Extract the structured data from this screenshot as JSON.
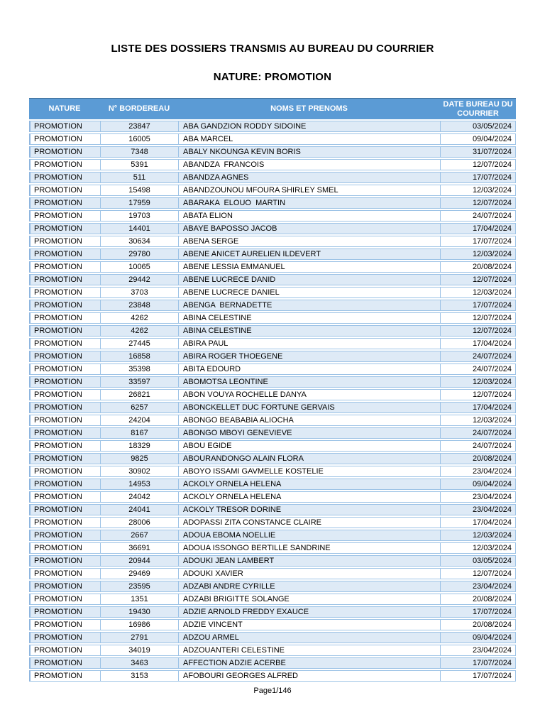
{
  "page": {
    "title": "LISTE DES DOSSIERS TRANSMIS AU BUREAU DU COURRIER",
    "subtitle": "NATURE: PROMOTION",
    "footer": "Page1/146"
  },
  "colors": {
    "header_bg": "#5B9BD5",
    "header_text": "#FFFFFF",
    "band_row_bg": "#DEEAF6",
    "cell_border": "#9DC3E6"
  },
  "table": {
    "columns": [
      "NATURE",
      "N° BORDEREAU",
      "NOMS ET PRENOMS",
      "DATE BUREAU DU COURRIER"
    ],
    "rows": [
      {
        "nature": "PROMOTION",
        "bordereau": "23847",
        "noms": "ABA GANDZION RODDY SIDOINE",
        "date": "03/05/2024"
      },
      {
        "nature": "PROMOTION",
        "bordereau": "16005",
        "noms": "ABA MARCEL",
        "date": "09/04/2024"
      },
      {
        "nature": "PROMOTION",
        "bordereau": "7348",
        "noms": "ABALY NKOUNGA KEVIN BORIS",
        "date": "31/07/2024"
      },
      {
        "nature": "PROMOTION",
        "bordereau": "5391",
        "noms": "ABANDZA  FRANCOIS",
        "date": "12/07/2024"
      },
      {
        "nature": "PROMOTION",
        "bordereau": "511",
        "noms": "ABANDZA AGNES",
        "date": "17/07/2024"
      },
      {
        "nature": "PROMOTION",
        "bordereau": "15498",
        "noms": "ABANDZOUNOU MFOURA SHIRLEY SMEL",
        "date": "12/03/2024"
      },
      {
        "nature": "PROMOTION",
        "bordereau": "17959",
        "noms": "ABARAKA  ELOUO  MARTIN",
        "date": "12/07/2024"
      },
      {
        "nature": "PROMOTION",
        "bordereau": "19703",
        "noms": "ABATA ELION",
        "date": "24/07/2024"
      },
      {
        "nature": "PROMOTION",
        "bordereau": "14401",
        "noms": "ABAYE BAPOSSO JACOB",
        "date": "17/04/2024"
      },
      {
        "nature": "PROMOTION",
        "bordereau": "30634",
        "noms": "ABENA SERGE",
        "date": "17/07/2024"
      },
      {
        "nature": "PROMOTION",
        "bordereau": "29780",
        "noms": "ABENE ANICET AURELIEN ILDEVERT",
        "date": "12/03/2024"
      },
      {
        "nature": "PROMOTION",
        "bordereau": "10065",
        "noms": "ABENE LESSIA EMMANUEL",
        "date": "20/08/2024"
      },
      {
        "nature": "PROMOTION",
        "bordereau": "29442",
        "noms": "ABENE LUCRECE DANID",
        "date": "12/07/2024"
      },
      {
        "nature": "PROMOTION",
        "bordereau": "3703",
        "noms": "ABENE LUCRECE DANIEL",
        "date": "12/03/2024"
      },
      {
        "nature": "PROMOTION",
        "bordereau": "23848",
        "noms": "ABENGA  BERNADETTE",
        "date": "17/07/2024"
      },
      {
        "nature": "PROMOTION",
        "bordereau": "4262",
        "noms": "ABINA CELESTINE",
        "date": "12/07/2024"
      },
      {
        "nature": "PROMOTION",
        "bordereau": "4262",
        "noms": "ABINA CELESTINE",
        "date": "12/07/2024"
      },
      {
        "nature": "PROMOTION",
        "bordereau": "27445",
        "noms": "ABIRA PAUL",
        "date": "17/04/2024"
      },
      {
        "nature": "PROMOTION",
        "bordereau": "16858",
        "noms": "ABIRA ROGER THOEGENE",
        "date": "24/07/2024"
      },
      {
        "nature": "PROMOTION",
        "bordereau": "35398",
        "noms": "ABITA EDOURD",
        "date": "24/07/2024"
      },
      {
        "nature": "PROMOTION",
        "bordereau": "33597",
        "noms": "ABOMOTSA LEONTINE",
        "date": "12/03/2024"
      },
      {
        "nature": "PROMOTION",
        "bordereau": "26821",
        "noms": "ABON VOUYA ROCHELLE DANYA",
        "date": "12/07/2024"
      },
      {
        "nature": "PROMOTION",
        "bordereau": "6257",
        "noms": "ABONCKELLET DUC FORTUNE GERVAIS",
        "date": "17/04/2024"
      },
      {
        "nature": "PROMOTION",
        "bordereau": "24204",
        "noms": "ABONGO BEABABIA ALIOCHA",
        "date": "12/03/2024"
      },
      {
        "nature": "PROMOTION",
        "bordereau": "8167",
        "noms": "ABONGO MBOYI GENEVIEVE",
        "date": "24/07/2024"
      },
      {
        "nature": "PROMOTION",
        "bordereau": "18329",
        "noms": "ABOU EGIDE",
        "date": "24/07/2024"
      },
      {
        "nature": "PROMOTION",
        "bordereau": "9825",
        "noms": "ABOURANDONGO ALAIN FLORA",
        "date": "20/08/2024"
      },
      {
        "nature": "PROMOTION",
        "bordereau": "30902",
        "noms": "ABOYO ISSAMI GAVMELLE KOSTELIE",
        "date": "23/04/2024"
      },
      {
        "nature": "PROMOTION",
        "bordereau": "14953",
        "noms": "ACKOLY ORNELA HELENA",
        "date": "09/04/2024"
      },
      {
        "nature": "PROMOTION",
        "bordereau": "24042",
        "noms": "ACKOLY ORNELA HELENA",
        "date": "23/04/2024"
      },
      {
        "nature": "PROMOTION",
        "bordereau": "24041",
        "noms": "ACKOLY TRESOR DORINE",
        "date": "23/04/2024"
      },
      {
        "nature": "PROMOTION",
        "bordereau": "28006",
        "noms": "ADOPASSI ZITA CONSTANCE CLAIRE",
        "date": "17/04/2024"
      },
      {
        "nature": "PROMOTION",
        "bordereau": "2667",
        "noms": "ADOUA EBOMA NOELLIE",
        "date": "12/03/2024"
      },
      {
        "nature": "PROMOTION",
        "bordereau": "36691",
        "noms": "ADOUA ISSONGO BERTILLE SANDRINE",
        "date": "12/03/2024"
      },
      {
        "nature": "PROMOTION",
        "bordereau": "20944",
        "noms": "ADOUKI JEAN LAMBERT",
        "date": "03/05/2024"
      },
      {
        "nature": "PROMOTION",
        "bordereau": "29469",
        "noms": "ADOUKI XAVIER",
        "date": "12/07/2024"
      },
      {
        "nature": "PROMOTION",
        "bordereau": "23595",
        "noms": "ADZABI ANDRE CYRILLE",
        "date": "23/04/2024"
      },
      {
        "nature": "PROMOTION",
        "bordereau": "1351",
        "noms": "ADZABI BRIGITTE SOLANGE",
        "date": "20/08/2024"
      },
      {
        "nature": "PROMOTION",
        "bordereau": "19430",
        "noms": "ADZIE ARNOLD FREDDY EXAUCE",
        "date": "17/07/2024"
      },
      {
        "nature": "PROMOTION",
        "bordereau": "16986",
        "noms": "ADZIE VINCENT",
        "date": "20/08/2024"
      },
      {
        "nature": "PROMOTION",
        "bordereau": "2791",
        "noms": "ADZOU ARMEL",
        "date": "09/04/2024"
      },
      {
        "nature": "PROMOTION",
        "bordereau": "34019",
        "noms": "ADZOUANTERI CELESTINE",
        "date": "23/04/2024"
      },
      {
        "nature": "PROMOTION",
        "bordereau": "3463",
        "noms": "AFFECTION ADZIE ACERBE",
        "date": "17/07/2024"
      },
      {
        "nature": "PROMOTION",
        "bordereau": "3153",
        "noms": "AFOBOURI GEORGES ALFRED",
        "date": "17/07/2024"
      }
    ]
  }
}
